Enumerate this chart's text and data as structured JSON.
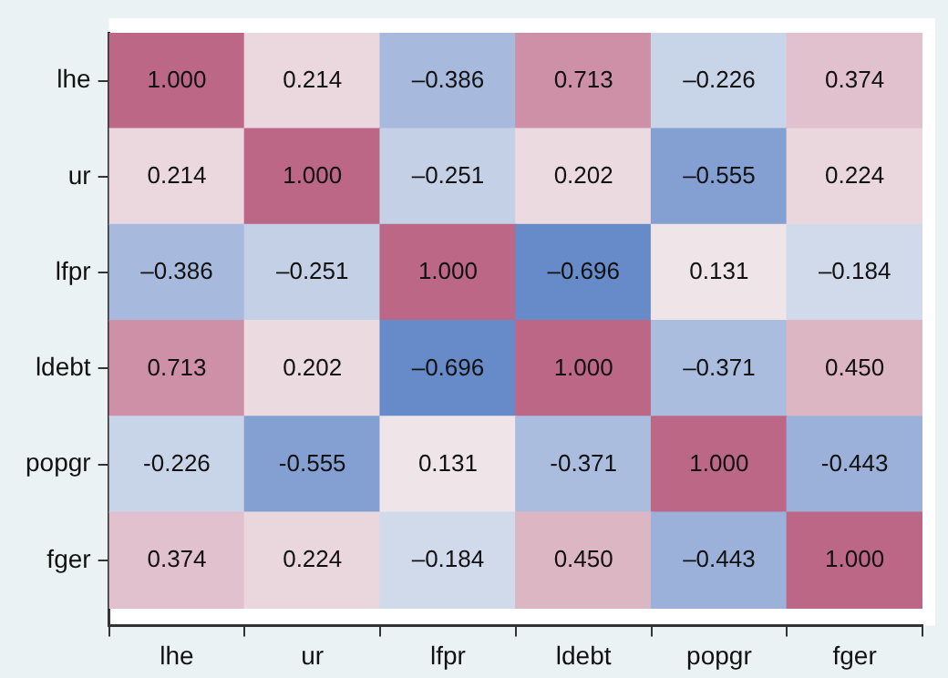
{
  "chart_data": {
    "type": "heatmap",
    "categories": [
      "lhe",
      "ur",
      "lfpr",
      "ldebt",
      "popgr",
      "fger"
    ],
    "y_categories": [
      "lhe",
      "ur",
      "lfpr",
      "ldebt",
      "popgr",
      "fger"
    ],
    "cells": [
      [
        1.0,
        0.214,
        -0.386,
        0.713,
        -0.226,
        0.374
      ],
      [
        0.214,
        1.0,
        -0.251,
        0.202,
        -0.555,
        0.224
      ],
      [
        -0.386,
        -0.251,
        1.0,
        -0.696,
        0.131,
        -0.184
      ],
      [
        0.713,
        0.202,
        -0.696,
        1.0,
        -0.371,
        0.45
      ],
      [
        -0.226,
        -0.555,
        0.131,
        -0.371,
        1.0,
        -0.443
      ],
      [
        0.374,
        0.224,
        -0.184,
        0.45,
        -0.443,
        1.0
      ]
    ],
    "cell_labels": [
      [
        "1.000",
        "0.214",
        "–0.386",
        "0.713",
        "–0.226",
        "0.374"
      ],
      [
        "0.214",
        "1.000",
        "–0.251",
        "0.202",
        "–0.555",
        "0.224"
      ],
      [
        "–0.386",
        "–0.251",
        "1.000",
        "–0.696",
        "0.131",
        "–0.184"
      ],
      [
        "0.713",
        "0.202",
        "–0.696",
        "1.000",
        "–0.371",
        "0.450"
      ],
      [
        "-0.226",
        "-0.555",
        "0.131",
        "-0.371",
        "1.000",
        "-0.443"
      ],
      [
        "0.374",
        "0.224",
        "–0.184",
        "0.450",
        "–0.443",
        "1.000"
      ]
    ],
    "grid": false,
    "legend": false
  }
}
